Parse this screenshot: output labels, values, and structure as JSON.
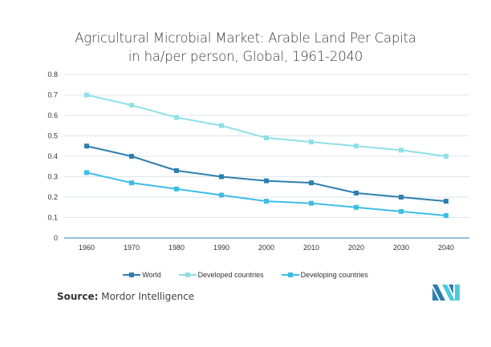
{
  "chart_data": {
    "type": "line",
    "title_line1": "Agricultural Microbial Market: Arable Land Per Capita",
    "title_line2": "in ha/per person, Global, 1961-2040",
    "xlabel": "",
    "ylabel": "",
    "categories": [
      "1960",
      "1970",
      "1980",
      "1990",
      "2000",
      "2010",
      "2020",
      "2030",
      "2040"
    ],
    "y_ticks": [
      "0",
      "0.1",
      "0.2",
      "0.3",
      "0.4",
      "0.5",
      "0.6",
      "0.7",
      "0.8"
    ],
    "ylim": [
      0,
      0.8
    ],
    "grid": true,
    "legend_position": "bottom",
    "series": [
      {
        "name": "World",
        "color": "#2e7fb0",
        "values": [
          0.45,
          0.4,
          0.33,
          0.3,
          0.28,
          0.27,
          0.22,
          0.2,
          0.18
        ]
      },
      {
        "name": "Developed countries",
        "color": "#8fe0e6",
        "values": [
          0.7,
          0.65,
          0.59,
          0.55,
          0.49,
          0.47,
          0.45,
          0.43,
          0.4
        ]
      },
      {
        "name": "Developing countries",
        "color": "#3dbde6",
        "values": [
          0.32,
          0.27,
          0.24,
          0.21,
          0.18,
          0.17,
          0.15,
          0.13,
          0.11
        ]
      }
    ]
  },
  "footer": {
    "source_label": "Source:",
    "source_name": "Mordor Intelligence"
  },
  "logo": {
    "name": "mordor-intelligence-logo",
    "colors": [
      "#2e7fb0",
      "#4fc9d8"
    ]
  }
}
